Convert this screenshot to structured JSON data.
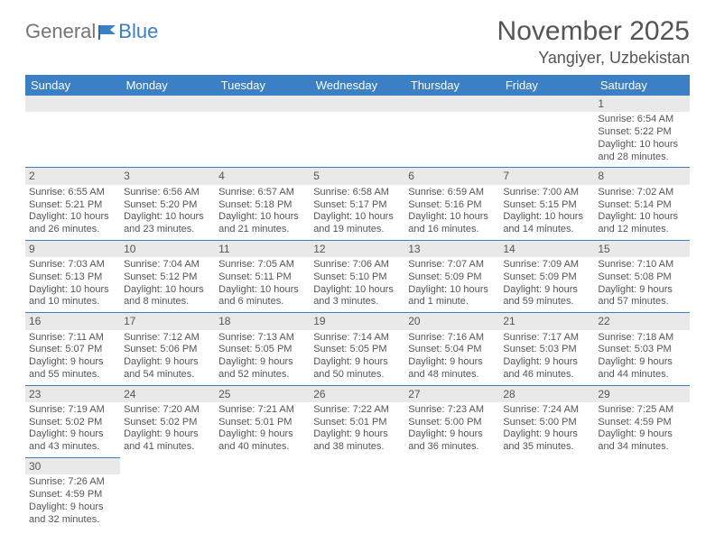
{
  "logo": {
    "part1": "General",
    "part2": "Blue"
  },
  "title": "November 2025",
  "location": "Yangiyer, Uzbekistan",
  "colors": {
    "header_bg": "#3b7fc4",
    "header_text": "#ffffff",
    "text": "#555555",
    "daynum_bg": "#e9e9e9",
    "border": "#3b7fc4"
  },
  "weekdays": [
    "Sunday",
    "Monday",
    "Tuesday",
    "Wednesday",
    "Thursday",
    "Friday",
    "Saturday"
  ],
  "first_weekday_index": 6,
  "days_in_month": 30,
  "days": {
    "1": {
      "sunrise": "6:54 AM",
      "sunset": "5:22 PM",
      "daylight": "10 hours and 28 minutes."
    },
    "2": {
      "sunrise": "6:55 AM",
      "sunset": "5:21 PM",
      "daylight": "10 hours and 26 minutes."
    },
    "3": {
      "sunrise": "6:56 AM",
      "sunset": "5:20 PM",
      "daylight": "10 hours and 23 minutes."
    },
    "4": {
      "sunrise": "6:57 AM",
      "sunset": "5:18 PM",
      "daylight": "10 hours and 21 minutes."
    },
    "5": {
      "sunrise": "6:58 AM",
      "sunset": "5:17 PM",
      "daylight": "10 hours and 19 minutes."
    },
    "6": {
      "sunrise": "6:59 AM",
      "sunset": "5:16 PM",
      "daylight": "10 hours and 16 minutes."
    },
    "7": {
      "sunrise": "7:00 AM",
      "sunset": "5:15 PM",
      "daylight": "10 hours and 14 minutes."
    },
    "8": {
      "sunrise": "7:02 AM",
      "sunset": "5:14 PM",
      "daylight": "10 hours and 12 minutes."
    },
    "9": {
      "sunrise": "7:03 AM",
      "sunset": "5:13 PM",
      "daylight": "10 hours and 10 minutes."
    },
    "10": {
      "sunrise": "7:04 AM",
      "sunset": "5:12 PM",
      "daylight": "10 hours and 8 minutes."
    },
    "11": {
      "sunrise": "7:05 AM",
      "sunset": "5:11 PM",
      "daylight": "10 hours and 6 minutes."
    },
    "12": {
      "sunrise": "7:06 AM",
      "sunset": "5:10 PM",
      "daylight": "10 hours and 3 minutes."
    },
    "13": {
      "sunrise": "7:07 AM",
      "sunset": "5:09 PM",
      "daylight": "10 hours and 1 minute."
    },
    "14": {
      "sunrise": "7:09 AM",
      "sunset": "5:09 PM",
      "daylight": "9 hours and 59 minutes."
    },
    "15": {
      "sunrise": "7:10 AM",
      "sunset": "5:08 PM",
      "daylight": "9 hours and 57 minutes."
    },
    "16": {
      "sunrise": "7:11 AM",
      "sunset": "5:07 PM",
      "daylight": "9 hours and 55 minutes."
    },
    "17": {
      "sunrise": "7:12 AM",
      "sunset": "5:06 PM",
      "daylight": "9 hours and 54 minutes."
    },
    "18": {
      "sunrise": "7:13 AM",
      "sunset": "5:05 PM",
      "daylight": "9 hours and 52 minutes."
    },
    "19": {
      "sunrise": "7:14 AM",
      "sunset": "5:05 PM",
      "daylight": "9 hours and 50 minutes."
    },
    "20": {
      "sunrise": "7:16 AM",
      "sunset": "5:04 PM",
      "daylight": "9 hours and 48 minutes."
    },
    "21": {
      "sunrise": "7:17 AM",
      "sunset": "5:03 PM",
      "daylight": "9 hours and 46 minutes."
    },
    "22": {
      "sunrise": "7:18 AM",
      "sunset": "5:03 PM",
      "daylight": "9 hours and 44 minutes."
    },
    "23": {
      "sunrise": "7:19 AM",
      "sunset": "5:02 PM",
      "daylight": "9 hours and 43 minutes."
    },
    "24": {
      "sunrise": "7:20 AM",
      "sunset": "5:02 PM",
      "daylight": "9 hours and 41 minutes."
    },
    "25": {
      "sunrise": "7:21 AM",
      "sunset": "5:01 PM",
      "daylight": "9 hours and 40 minutes."
    },
    "26": {
      "sunrise": "7:22 AM",
      "sunset": "5:01 PM",
      "daylight": "9 hours and 38 minutes."
    },
    "27": {
      "sunrise": "7:23 AM",
      "sunset": "5:00 PM",
      "daylight": "9 hours and 36 minutes."
    },
    "28": {
      "sunrise": "7:24 AM",
      "sunset": "5:00 PM",
      "daylight": "9 hours and 35 minutes."
    },
    "29": {
      "sunrise": "7:25 AM",
      "sunset": "4:59 PM",
      "daylight": "9 hours and 34 minutes."
    },
    "30": {
      "sunrise": "7:26 AM",
      "sunset": "4:59 PM",
      "daylight": "9 hours and 32 minutes."
    }
  },
  "labels": {
    "sunrise": "Sunrise:",
    "sunset": "Sunset:",
    "daylight": "Daylight:"
  }
}
